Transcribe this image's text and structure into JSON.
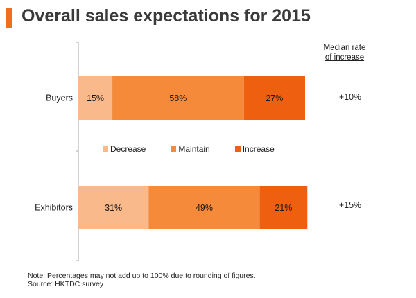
{
  "title": "Overall sales expectations for 2015",
  "accent_color": "#f06e1e",
  "median": {
    "header_line1": "Median rate",
    "header_line2": "of increase",
    "values": [
      "+10%",
      "+15%"
    ]
  },
  "chart_data": {
    "type": "bar",
    "orientation": "horizontal",
    "stacked": true,
    "categories": [
      "Buyers",
      "Exhibitors"
    ],
    "series": [
      {
        "name": "Decrease",
        "color": "#f9b98a",
        "values": [
          15,
          31
        ],
        "labels": [
          "15%",
          "31%"
        ]
      },
      {
        "name": "Maintain",
        "color": "#f48a3a",
        "values": [
          58,
          49
        ],
        "labels": [
          "58%",
          "49%"
        ]
      },
      {
        "name": "Increase",
        "color": "#ee6010",
        "values": [
          27,
          21
        ],
        "labels": [
          "27%",
          "21%"
        ]
      }
    ],
    "xlim": [
      0,
      100
    ],
    "grid": false,
    "legend_position": "center"
  },
  "footnote": {
    "note": "Note: Percentages may not add up to 100% due to rounding of figures.",
    "source": "Source: HKTDC survey"
  }
}
